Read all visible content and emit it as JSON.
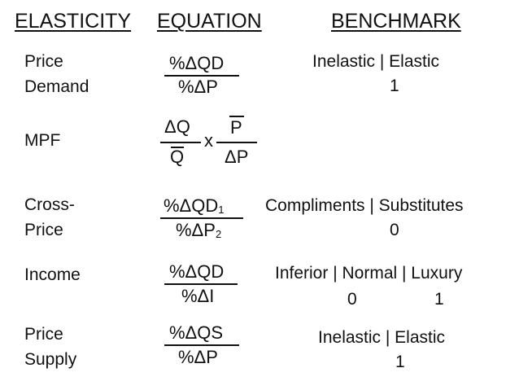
{
  "headers": {
    "elasticity": "ELASTICITY",
    "equation": "EQUATION",
    "benchmark": "BENCHMARK"
  },
  "rows": {
    "price_demand": {
      "label_line1": "Price",
      "label_line2": "Demand",
      "numerator": "%ΔQD",
      "denominator": "%ΔP",
      "benchmark_line1": "Inelastic | Elastic",
      "benchmark_line2": "1"
    },
    "mpf": {
      "label": "MPF",
      "left_numerator": "ΔQ",
      "left_denominator": "Q",
      "times": "x",
      "right_numerator": "P",
      "right_denominator": "ΔP"
    },
    "cross_price": {
      "label_line1": "Cross-",
      "label_line2": "Price",
      "numerator_main": "%ΔQD",
      "numerator_sub": "1",
      "denominator_main": "%ΔP",
      "denominator_sub": "2",
      "benchmark_line1": "Compliments | Substitutes",
      "benchmark_line2": "0"
    },
    "income": {
      "label": "Income",
      "numerator": "%ΔQD",
      "denominator": "%ΔI",
      "benchmark_line1": "Inferior | Normal | Luxury",
      "benchmark_zero": "0",
      "benchmark_one": "1"
    },
    "price_supply": {
      "label_line1": "Price",
      "label_line2": "Supply",
      "numerator": "%ΔQS",
      "denominator": "%ΔP",
      "benchmark_line1": "Inelastic | Elastic",
      "benchmark_line2": "1"
    }
  }
}
